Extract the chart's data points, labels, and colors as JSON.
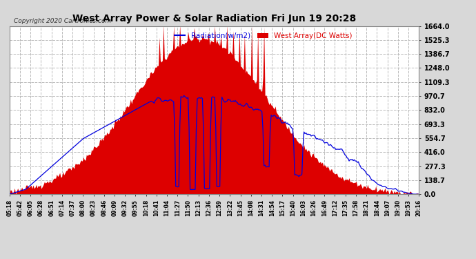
{
  "title": "West Array Power & Solar Radiation Fri Jun 19 20:28",
  "copyright": "Copyright 2020 Cartronics.com",
  "legend_radiation": "Radiation(w/m2)",
  "legend_west": "West Array(DC Watts)",
  "yticks": [
    0.0,
    138.7,
    277.3,
    416.0,
    554.7,
    693.3,
    832.0,
    970.7,
    1109.3,
    1248.0,
    1386.7,
    1525.3,
    1664.0
  ],
  "ymax": 1664.0,
  "ymin": 0.0,
  "background_color": "#d8d8d8",
  "plot_background": "#ffffff",
  "grid_color": "#bbbbbb",
  "title_color": "#000000",
  "radiation_color": "#0000dd",
  "west_array_color": "#dd0000",
  "xtick_labels": [
    "05:18",
    "05:42",
    "06:05",
    "06:28",
    "06:51",
    "07:14",
    "07:37",
    "08:00",
    "08:23",
    "08:46",
    "09:09",
    "09:32",
    "09:55",
    "10:18",
    "10:41",
    "11:04",
    "11:27",
    "11:50",
    "12:13",
    "12:36",
    "12:59",
    "13:22",
    "13:45",
    "14:08",
    "14:31",
    "14:54",
    "15:17",
    "15:40",
    "16:03",
    "16:26",
    "16:49",
    "17:12",
    "17:35",
    "17:58",
    "18:21",
    "18:44",
    "19:07",
    "19:30",
    "19:53",
    "20:16"
  ],
  "num_points": 400
}
